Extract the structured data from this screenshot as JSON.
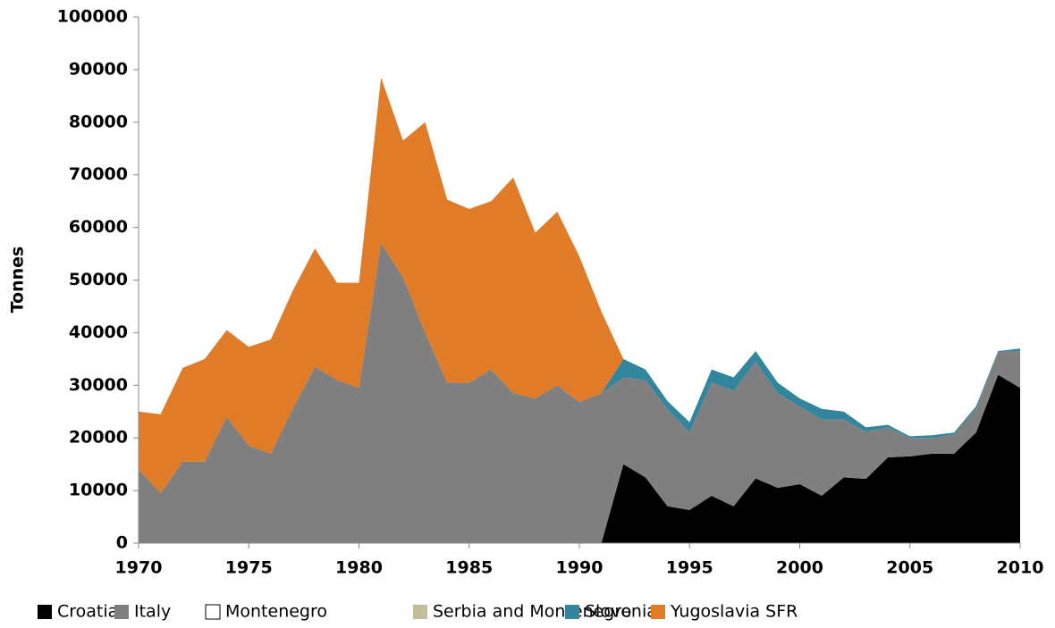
{
  "chart_data": {
    "type": "stacked_area",
    "y_label": "Tonnes",
    "x": [
      1970,
      1971,
      1972,
      1973,
      1974,
      1975,
      1976,
      1977,
      1978,
      1979,
      1980,
      1981,
      1982,
      1983,
      1984,
      1985,
      1986,
      1987,
      1988,
      1989,
      1990,
      1991,
      1992,
      1993,
      1994,
      1995,
      1996,
      1997,
      1998,
      1999,
      2000,
      2001,
      2002,
      2003,
      2004,
      2005,
      2006,
      2007,
      2008,
      2009,
      2010
    ],
    "xlim": [
      1970,
      2010
    ],
    "xticks": [
      1970,
      1975,
      1980,
      1985,
      1990,
      1995,
      2000,
      2005,
      2010
    ],
    "ylim": [
      0,
      100000
    ],
    "yticks": [
      0,
      10000,
      20000,
      30000,
      40000,
      50000,
      60000,
      70000,
      80000,
      90000,
      100000
    ],
    "series": [
      {
        "name": "Croatia",
        "color": "#000000",
        "values": [
          0,
          0,
          0,
          0,
          0,
          0,
          0,
          0,
          0,
          0,
          0,
          0,
          0,
          0,
          0,
          0,
          0,
          0,
          0,
          0,
          0,
          0,
          15000,
          12500,
          7000,
          6300,
          9000,
          7000,
          12300,
          10500,
          11200,
          9000,
          12500,
          12200,
          16300,
          16500,
          17000,
          17000,
          21000,
          32000,
          29500
        ]
      },
      {
        "name": "Italy",
        "color": "#7f7f7f",
        "values": [
          14000,
          9500,
          15500,
          15500,
          24000,
          18500,
          17000,
          25500,
          33500,
          31000,
          29500,
          57000,
          50500,
          40000,
          30500,
          30500,
          33000,
          28500,
          27500,
          30000,
          26800,
          28500,
          16500,
          18500,
          18500,
          14700,
          21500,
          22000,
          22200,
          18000,
          14800,
          14500,
          11000,
          9000,
          5700,
          3500,
          3000,
          3700,
          4500,
          4300,
          7000
        ]
      },
      {
        "name": "Montenegro",
        "color": "#ffffff",
        "values": [
          0,
          0,
          0,
          0,
          0,
          0,
          0,
          0,
          0,
          0,
          0,
          0,
          0,
          0,
          0,
          0,
          0,
          0,
          0,
          0,
          0,
          0,
          0,
          0,
          0,
          0,
          0,
          0,
          0,
          0,
          0,
          0,
          0,
          0,
          0,
          0,
          0,
          0,
          0,
          0,
          0
        ]
      },
      {
        "name": "Serbia and Montenegro",
        "color": "#c4bd97",
        "values": [
          0,
          0,
          0,
          0,
          0,
          0,
          0,
          0,
          0,
          0,
          0,
          0,
          0,
          0,
          0,
          0,
          0,
          0,
          0,
          0,
          0,
          0,
          0,
          0,
          0,
          0,
          0,
          0,
          0,
          0,
          0,
          0,
          0,
          0,
          0,
          0,
          0,
          0,
          0,
          0,
          0
        ]
      },
      {
        "name": "Slovenia",
        "color": "#31859c",
        "values": [
          0,
          0,
          0,
          0,
          0,
          0,
          0,
          0,
          0,
          0,
          0,
          0,
          0,
          0,
          0,
          0,
          0,
          0,
          0,
          0,
          0,
          0,
          3500,
          2000,
          1500,
          2000,
          2500,
          2500,
          2000,
          2000,
          1500,
          2000,
          1500,
          800,
          500,
          300,
          500,
          300,
          500,
          200,
          500
        ]
      },
      {
        "name": "Yugoslavia SFR",
        "color": "#e07b28",
        "values": [
          11000,
          15000,
          17800,
          19500,
          16500,
          18800,
          21700,
          22500,
          22500,
          18500,
          20000,
          31500,
          26000,
          40000,
          34800,
          33000,
          32000,
          41000,
          31500,
          33000,
          27700,
          15500,
          0,
          0,
          0,
          0,
          0,
          0,
          0,
          0,
          0,
          0,
          0,
          0,
          0,
          0,
          0,
          0,
          0,
          0,
          0
        ]
      }
    ]
  }
}
